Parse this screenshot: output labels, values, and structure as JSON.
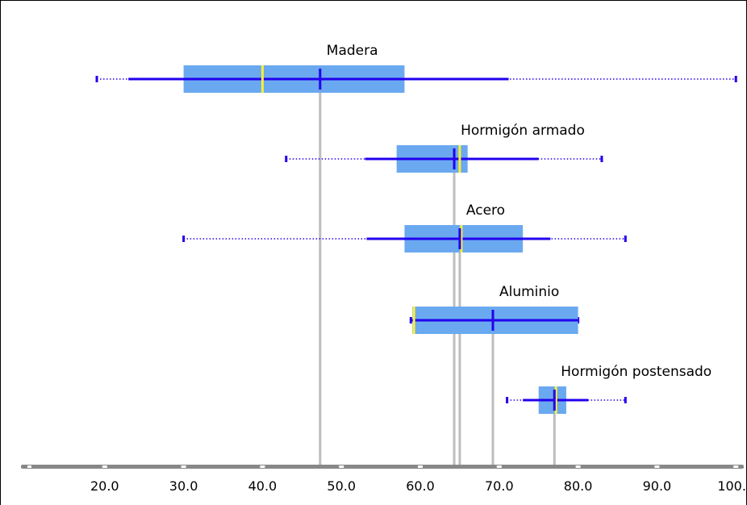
{
  "chart_data": {
    "type": "boxplot",
    "orientation": "horizontal",
    "title": "",
    "xlabel": "",
    "ylabel": "",
    "xlim": [
      10,
      101
    ],
    "x_ticks": [
      20,
      30,
      40,
      50,
      60,
      70,
      80,
      90,
      100
    ],
    "x_tick_labels": [
      "20.0",
      "30.0",
      "40.0",
      "50.0",
      "60.0",
      "70.0",
      "80.0",
      "90.0",
      "100.0"
    ],
    "grid": false,
    "legend": "none",
    "series": [
      {
        "name": "Madera",
        "min": 19,
        "whisker_low": 23,
        "q1": 30,
        "median": 40,
        "mean": 47.3,
        "q3": 58,
        "whisker_high": 71.2,
        "max": 100
      },
      {
        "name": "Hormigón armado",
        "min": 43,
        "whisker_low": 53,
        "q1": 57,
        "median": 65,
        "mean": 64.3,
        "q3": 66,
        "whisker_high": 75,
        "max": 83
      },
      {
        "name": "Acero",
        "min": 30,
        "whisker_low": 53.2,
        "q1": 58,
        "median": 65.2,
        "mean": 65,
        "q3": 73,
        "whisker_high": 76.5,
        "max": 86
      },
      {
        "name": "Aluminio",
        "min": 58.8,
        "whisker_low": 58.8,
        "q1": 59,
        "median": 59.2,
        "mean": 69.2,
        "q3": 80,
        "whisker_high": 80,
        "max": 80
      },
      {
        "name": "Hormigón postensado",
        "min": 71,
        "whisker_low": 73,
        "q1": 75,
        "median": 77.2,
        "mean": 77,
        "q3": 78.5,
        "whisker_high": 81.3,
        "max": 86
      }
    ],
    "colors": {
      "box": "#6aa9f0",
      "whisker": "#2200ee",
      "median": "#ffee33",
      "mean": "#2200ee",
      "reference_line": "#bdbdbd",
      "axis": "#888888"
    }
  }
}
